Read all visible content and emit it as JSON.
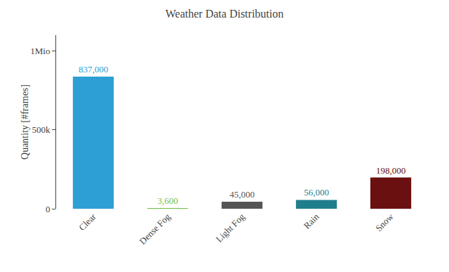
{
  "chart_data": {
    "type": "bar",
    "title": "Weather Data Distribution",
    "categories": [
      "Clear",
      "Dense Fog",
      "Light Fog",
      "Rain",
      "Snow"
    ],
    "values": [
      837000,
      3600,
      45000,
      56000,
      198000
    ],
    "value_labels": [
      "837,000",
      "3,600",
      "45,000",
      "56,000",
      "198,000"
    ],
    "colors": [
      "#2E9FD4",
      "#6DBF4A",
      "#555555",
      "#1E7E8C",
      "#6B1010"
    ],
    "ylabel": "Quantity [#frames]",
    "ylim": [
      0,
      1100000
    ],
    "yticks": [
      0,
      {
        "value": 500000,
        "label": "500k"
      },
      {
        "value": 1000000,
        "label": "1Mio"
      }
    ],
    "data_labels": true,
    "grid": false
  }
}
